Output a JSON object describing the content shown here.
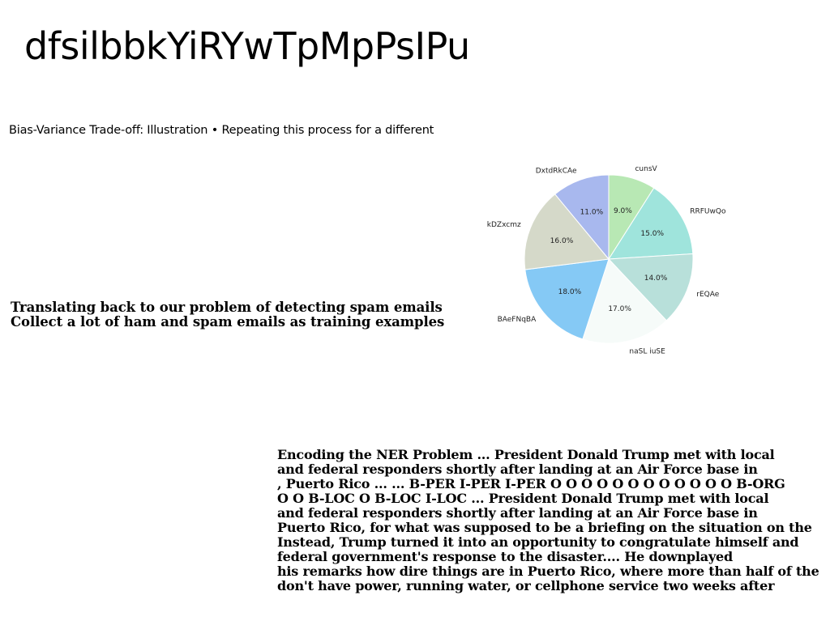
{
  "page": {
    "title": "dfsilbbkYiRYwTpMpPsIPu",
    "subtitle": "Bias-Variance Trade-off: Illustration • Repeating this process for a different"
  },
  "middle_text": {
    "lines": [
      "Translating back to our problem of detecting spam emails",
      "Collect a lot of ham and spam emails as training examples"
    ]
  },
  "bottom_text": {
    "lines": [
      "Encoding the NER Problem ... President Donald Trump met with local",
      "and federal responders shortly after landing at an Air Force base in",
      ", Puerto Rico ... ... B-PER I-PER I-PER O O O O O O O O O O O O B-ORG",
      "O O B-LOC O B-LOC I-LOC ... President Donald Trump met with local",
      "and federal responders shortly after landing at an Air Force base in",
      "Puerto Rico, for what was supposed to be a briefing on the situation on the",
      "Instead, Trump turned it into an opportunity to congratulate himself and",
      "federal government's response to the disaster.... He downplayed",
      "his remarks how dire things are in Puerto Rico, where more than half of the",
      "don't have power, running water, or cellphone service two weeks after"
    ]
  },
  "chart_data": {
    "type": "pie",
    "title": "",
    "start_angle_deg": 90,
    "direction": "clockwise",
    "slices": [
      {
        "label": "cunsV",
        "value": 9.0,
        "pct_label": "9.0%",
        "color": "#b8e8b4"
      },
      {
        "label": "RRFUwQo",
        "value": 15.0,
        "pct_label": "15.0%",
        "color": "#9fe4dc"
      },
      {
        "label": "rEQAe",
        "value": 14.0,
        "pct_label": "14.0%",
        "color": "#b8e0da"
      },
      {
        "label": "naSL iuSE",
        "value": 17.0,
        "pct_label": "17.0%",
        "color": "#f6fbf9"
      },
      {
        "label": "BAeFNqBA",
        "value": 18.0,
        "pct_label": "18.0%",
        "color": "#85c9f5"
      },
      {
        "label": "kDZxcmz",
        "value": 16.0,
        "pct_label": "16.0%",
        "color": "#d5d9c9"
      },
      {
        "label": "DxtdRkCAe",
        "value": 11.0,
        "pct_label": "11.0%",
        "color": "#a8b8ee"
      }
    ]
  }
}
